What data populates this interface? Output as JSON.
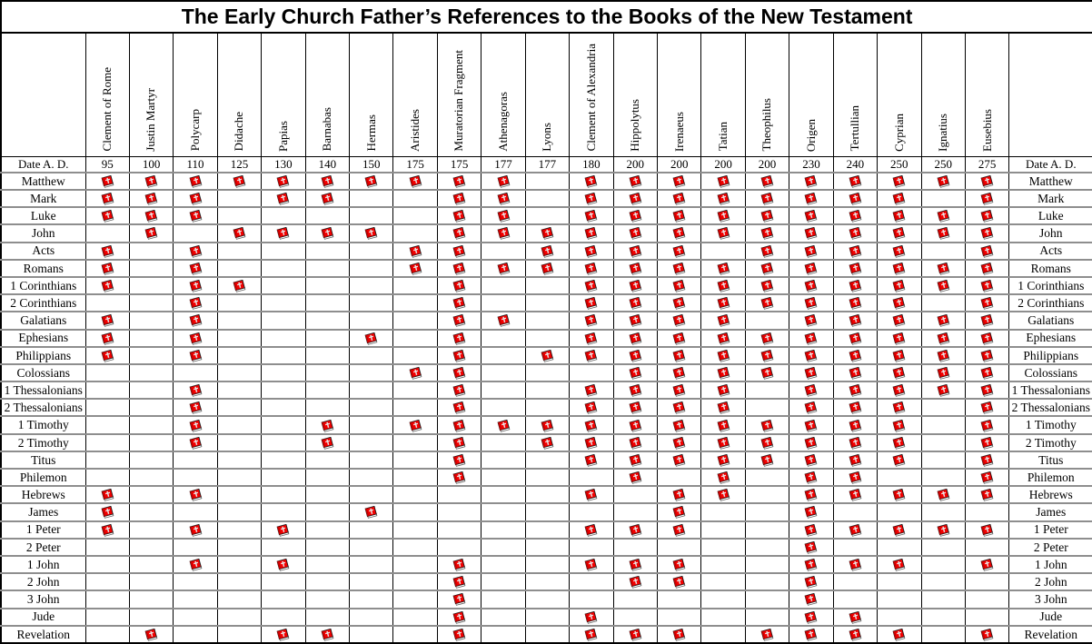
{
  "title": "The Early Church Father’s References to the Books of the New Testament",
  "date_label": "Date A. D.",
  "icon": {
    "name": "red-book-icon",
    "cover_color": "#f20000",
    "page_color": "#ffffff",
    "cross_color": "#e8e8e8"
  },
  "fathers": [
    {
      "name": "Clement of Rome",
      "date": "95"
    },
    {
      "name": "Justin Martyr",
      "date": "100"
    },
    {
      "name": "Polycarp",
      "date": "110"
    },
    {
      "name": "Didache",
      "date": "125"
    },
    {
      "name": "Papias",
      "date": "130"
    },
    {
      "name": "Barnabas",
      "date": "140"
    },
    {
      "name": "Hermas",
      "date": "150"
    },
    {
      "name": "Aristides",
      "date": "175"
    },
    {
      "name": "Muratorian Fragment",
      "date": "175"
    },
    {
      "name": "Athenagoras",
      "date": "177"
    },
    {
      "name": "Lyons",
      "date": "177"
    },
    {
      "name": "Clement of Alexandria",
      "date": "180"
    },
    {
      "name": "Hippolytus",
      "date": "200"
    },
    {
      "name": "Irenaeus",
      "date": "200"
    },
    {
      "name": "Tatian",
      "date": "200"
    },
    {
      "name": "Theophilus",
      "date": "200"
    },
    {
      "name": "Origen",
      "date": "230"
    },
    {
      "name": "Tertullian",
      "date": "240"
    },
    {
      "name": "Cyprian",
      "date": "250"
    },
    {
      "name": "Ignatius",
      "date": "250"
    },
    {
      "name": "Eusebius",
      "date": "275"
    }
  ],
  "books": [
    "Matthew",
    "Mark",
    "Luke",
    "John",
    "Acts",
    "Romans",
    "1 Corinthians",
    "2 Corinthians",
    "Galatians",
    "Ephesians",
    "Philippians",
    "Colossians",
    "1 Thessalonians",
    "2 Thessalonians",
    "1 Timothy",
    "2 Timothy",
    "Titus",
    "Philemon",
    "Hebrews",
    "James",
    "1 Peter",
    "2 Peter",
    "1 John",
    "2 John",
    "3 John",
    "Jude",
    "Revelation"
  ],
  "matrix": [
    [
      1,
      1,
      1,
      1,
      1,
      1,
      1,
      1,
      1,
      1,
      0,
      1,
      1,
      1,
      1,
      1,
      1,
      1,
      1,
      1,
      1
    ],
    [
      1,
      1,
      1,
      0,
      1,
      1,
      0,
      0,
      1,
      1,
      0,
      1,
      1,
      1,
      1,
      1,
      1,
      1,
      1,
      0,
      1
    ],
    [
      1,
      1,
      1,
      0,
      0,
      0,
      0,
      0,
      1,
      1,
      0,
      1,
      1,
      1,
      1,
      1,
      1,
      1,
      1,
      1,
      1
    ],
    [
      0,
      1,
      0,
      1,
      1,
      1,
      1,
      0,
      1,
      1,
      1,
      1,
      1,
      1,
      1,
      1,
      1,
      1,
      1,
      1,
      1
    ],
    [
      1,
      0,
      1,
      0,
      0,
      0,
      0,
      1,
      1,
      0,
      1,
      1,
      1,
      1,
      0,
      1,
      1,
      1,
      1,
      0,
      1
    ],
    [
      1,
      0,
      1,
      0,
      0,
      0,
      0,
      1,
      1,
      1,
      1,
      1,
      1,
      1,
      1,
      1,
      1,
      1,
      1,
      1,
      1
    ],
    [
      1,
      0,
      1,
      1,
      0,
      0,
      0,
      0,
      1,
      0,
      0,
      1,
      1,
      1,
      1,
      1,
      1,
      1,
      1,
      1,
      1
    ],
    [
      0,
      0,
      1,
      0,
      0,
      0,
      0,
      0,
      1,
      0,
      0,
      1,
      1,
      1,
      1,
      1,
      1,
      1,
      1,
      0,
      1
    ],
    [
      1,
      0,
      1,
      0,
      0,
      0,
      0,
      0,
      1,
      1,
      0,
      1,
      1,
      1,
      1,
      0,
      1,
      1,
      1,
      1,
      1
    ],
    [
      1,
      0,
      1,
      0,
      0,
      0,
      1,
      0,
      1,
      0,
      0,
      1,
      1,
      1,
      1,
      1,
      1,
      1,
      1,
      1,
      1
    ],
    [
      1,
      0,
      1,
      0,
      0,
      0,
      0,
      0,
      1,
      0,
      1,
      1,
      1,
      1,
      1,
      1,
      1,
      1,
      1,
      1,
      1
    ],
    [
      0,
      0,
      0,
      0,
      0,
      0,
      0,
      1,
      1,
      0,
      0,
      0,
      1,
      1,
      1,
      1,
      1,
      1,
      1,
      1,
      1
    ],
    [
      0,
      0,
      1,
      0,
      0,
      0,
      0,
      0,
      1,
      0,
      0,
      1,
      1,
      1,
      1,
      0,
      1,
      1,
      1,
      1,
      1
    ],
    [
      0,
      0,
      1,
      0,
      0,
      0,
      0,
      0,
      1,
      0,
      0,
      1,
      1,
      1,
      1,
      0,
      1,
      1,
      1,
      0,
      1
    ],
    [
      0,
      0,
      1,
      0,
      0,
      1,
      0,
      1,
      1,
      1,
      1,
      1,
      1,
      1,
      1,
      1,
      1,
      1,
      1,
      0,
      1
    ],
    [
      0,
      0,
      1,
      0,
      0,
      1,
      0,
      0,
      1,
      0,
      1,
      1,
      1,
      1,
      1,
      1,
      1,
      1,
      1,
      0,
      1
    ],
    [
      0,
      0,
      0,
      0,
      0,
      0,
      0,
      0,
      1,
      0,
      0,
      1,
      1,
      1,
      1,
      1,
      1,
      1,
      1,
      0,
      1
    ],
    [
      0,
      0,
      0,
      0,
      0,
      0,
      0,
      0,
      1,
      0,
      0,
      0,
      1,
      0,
      1,
      0,
      1,
      1,
      0,
      0,
      1
    ],
    [
      1,
      0,
      1,
      0,
      0,
      0,
      0,
      0,
      0,
      0,
      0,
      1,
      0,
      1,
      1,
      0,
      1,
      1,
      1,
      1,
      1
    ],
    [
      1,
      0,
      0,
      0,
      0,
      0,
      1,
      0,
      0,
      0,
      0,
      0,
      0,
      1,
      0,
      0,
      1,
      0,
      0,
      0,
      0
    ],
    [
      1,
      0,
      1,
      0,
      1,
      0,
      0,
      0,
      0,
      0,
      0,
      1,
      1,
      1,
      0,
      0,
      1,
      1,
      1,
      1,
      1
    ],
    [
      0,
      0,
      0,
      0,
      0,
      0,
      0,
      0,
      0,
      0,
      0,
      0,
      0,
      0,
      0,
      0,
      1,
      0,
      0,
      0,
      0
    ],
    [
      0,
      0,
      1,
      0,
      1,
      0,
      0,
      0,
      1,
      0,
      0,
      1,
      1,
      1,
      0,
      0,
      1,
      1,
      1,
      0,
      1
    ],
    [
      0,
      0,
      0,
      0,
      0,
      0,
      0,
      0,
      1,
      0,
      0,
      0,
      1,
      1,
      0,
      0,
      1,
      0,
      0,
      0,
      0
    ],
    [
      0,
      0,
      0,
      0,
      0,
      0,
      0,
      0,
      1,
      0,
      0,
      0,
      0,
      0,
      0,
      0,
      1,
      0,
      0,
      0,
      0
    ],
    [
      0,
      0,
      0,
      0,
      0,
      0,
      0,
      0,
      1,
      0,
      0,
      1,
      0,
      0,
      0,
      0,
      1,
      1,
      0,
      0,
      0
    ],
    [
      0,
      1,
      0,
      0,
      1,
      1,
      0,
      0,
      1,
      0,
      0,
      1,
      1,
      1,
      0,
      1,
      1,
      1,
      1,
      0,
      1
    ]
  ],
  "chart_data": {
    "type": "table",
    "title": "The Early Church Father’s References to the Books of the New Testament",
    "columns": [
      "Clement of Rome",
      "Justin Martyr",
      "Polycarp",
      "Didache",
      "Papias",
      "Barnabas",
      "Hermas",
      "Aristides",
      "Muratorian Fragment",
      "Athenagoras",
      "Lyons",
      "Clement of Alexandria",
      "Hippolytus",
      "Irenaeus",
      "Tatian",
      "Theophilus",
      "Origen",
      "Tertullian",
      "Cyprian",
      "Ignatius",
      "Eusebius"
    ],
    "column_dates_ad": [
      95,
      100,
      110,
      125,
      130,
      140,
      150,
      175,
      175,
      177,
      177,
      180,
      200,
      200,
      200,
      200,
      230,
      240,
      250,
      250,
      275
    ],
    "rows": "see books[] and matrix[] (1 = book icon present, 0 = empty cell)"
  }
}
